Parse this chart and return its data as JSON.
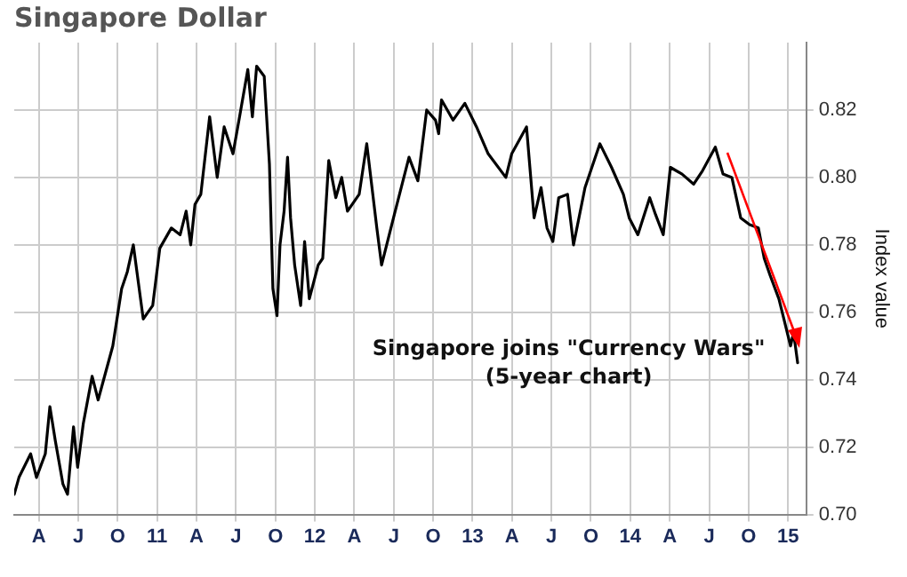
{
  "chart_data": {
    "type": "line",
    "title": "Singapore Dollar",
    "ylabel": "Index value",
    "annotations": [
      "Singapore joins \"Currency Wars\"\n(5-year chart)"
    ],
    "xlim": [
      2010.094,
      2015.116
    ],
    "xticks": [
      {
        "value": 2010.25,
        "label": "A"
      },
      {
        "value": 2010.5,
        "label": "J"
      },
      {
        "value": 2010.75,
        "label": "O"
      },
      {
        "value": 2011,
        "label": "11"
      },
      {
        "value": 2011.25,
        "label": "A"
      },
      {
        "value": 2011.5,
        "label": "J"
      },
      {
        "value": 2011.75,
        "label": "O"
      },
      {
        "value": 2012,
        "label": "12"
      },
      {
        "value": 2012.25,
        "label": "A"
      },
      {
        "value": 2012.5,
        "label": "J"
      },
      {
        "value": 2012.75,
        "label": "O"
      },
      {
        "value": 2013,
        "label": "13"
      },
      {
        "value": 2013.25,
        "label": "A"
      },
      {
        "value": 2013.5,
        "label": "J"
      },
      {
        "value": 2013.75,
        "label": "O"
      },
      {
        "value": 2014,
        "label": "14"
      },
      {
        "value": 2014.25,
        "label": "A"
      },
      {
        "value": 2014.5,
        "label": "J"
      },
      {
        "value": 2014.75,
        "label": "O"
      },
      {
        "value": 2015,
        "label": "15"
      }
    ],
    "ylim": [
      0.7,
      0.84
    ],
    "yticks": [
      {
        "value": 0.7,
        "label": "0.70"
      },
      {
        "value": 0.72,
        "label": "0.72"
      },
      {
        "value": 0.74,
        "label": "0.74"
      },
      {
        "value": 0.76,
        "label": "0.76"
      },
      {
        "value": 0.78,
        "label": "0.78"
      },
      {
        "value": 0.8,
        "label": "0.80"
      },
      {
        "value": 0.82,
        "label": "0.82"
      }
    ],
    "grid": true,
    "legend": false,
    "marker": "none",
    "line_style": "solid",
    "series": [
      {
        "color": "#000000",
        "x": [
          2010.094,
          2010.124,
          2010.198,
          2010.235,
          2010.291,
          2010.32,
          2010.354,
          2010.403,
          2010.432,
          2010.47,
          2010.496,
          2010.532,
          2010.588,
          2010.626,
          2010.719,
          2010.775,
          2010.811,
          2010.849,
          2010.912,
          2010.972,
          2011.017,
          2011.09,
          2011.146,
          2011.184,
          2011.213,
          2011.24,
          2011.277,
          2011.333,
          2011.381,
          2011.425,
          2011.481,
          2011.519,
          2011.575,
          2011.604,
          2011.631,
          2011.679,
          2011.712,
          2011.734,
          2011.76,
          2011.779,
          2011.805,
          2011.827,
          2011.846,
          2011.872,
          2011.91,
          2011.935,
          2011.965,
          2012.021,
          2012.05,
          2012.088,
          2012.133,
          2012.17,
          2012.207,
          2012.281,
          2012.329,
          2012.393,
          2012.423,
          2012.504,
          2012.597,
          2012.653,
          2012.709,
          2012.765,
          2012.785,
          2012.803,
          2012.876,
          2012.951,
          2013.025,
          2013.099,
          2013.211,
          2013.248,
          2013.342,
          2013.39,
          2013.434,
          2013.472,
          2013.509,
          2013.546,
          2013.602,
          2013.64,
          2013.713,
          2013.807,
          2013.881,
          2013.956,
          2013.993,
          2014.048,
          2014.123,
          2014.16,
          2014.209,
          2014.254,
          2014.328,
          2014.402,
          2014.458,
          2014.539,
          2014.588,
          2014.644,
          2014.7,
          2014.756,
          2014.812,
          2014.849,
          2014.886,
          2014.942,
          2014.979,
          2015.016,
          2015.035,
          2015.061
        ],
        "values": [
          0.706,
          0.711,
          0.718,
          0.711,
          0.718,
          0.732,
          0.722,
          0.709,
          0.706,
          0.726,
          0.714,
          0.727,
          0.741,
          0.734,
          0.75,
          0.767,
          0.772,
          0.78,
          0.758,
          0.762,
          0.779,
          0.785,
          0.783,
          0.79,
          0.78,
          0.792,
          0.795,
          0.818,
          0.8,
          0.815,
          0.807,
          0.817,
          0.832,
          0.818,
          0.833,
          0.83,
          0.804,
          0.767,
          0.759,
          0.78,
          0.79,
          0.806,
          0.788,
          0.774,
          0.762,
          0.781,
          0.764,
          0.774,
          0.776,
          0.805,
          0.794,
          0.8,
          0.79,
          0.795,
          0.81,
          0.785,
          0.774,
          0.789,
          0.806,
          0.799,
          0.82,
          0.817,
          0.813,
          0.823,
          0.817,
          0.822,
          0.815,
          0.807,
          0.8,
          0.807,
          0.815,
          0.788,
          0.797,
          0.785,
          0.781,
          0.794,
          0.795,
          0.78,
          0.797,
          0.81,
          0.803,
          0.795,
          0.788,
          0.783,
          0.794,
          0.789,
          0.783,
          0.803,
          0.801,
          0.798,
          0.802,
          0.809,
          0.801,
          0.8,
          0.788,
          0.786,
          0.785,
          0.776,
          0.771,
          0.764,
          0.757,
          0.75,
          0.754,
          0.745
        ]
      }
    ]
  }
}
